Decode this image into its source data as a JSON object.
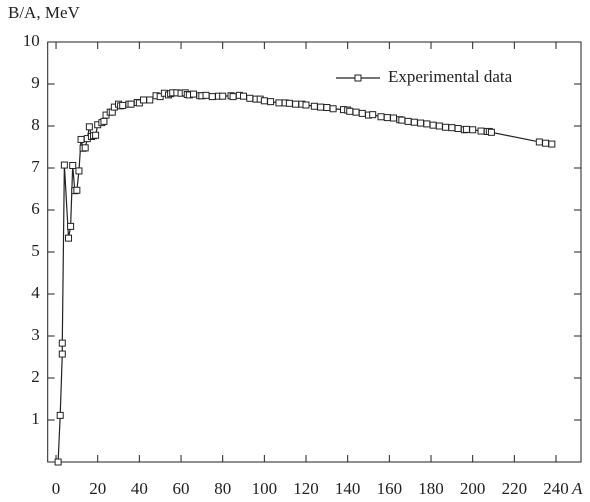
{
  "chart_data": {
    "type": "line",
    "y_label": "B/A, MeV",
    "x_label": "A",
    "x": [
      1,
      2,
      3,
      3,
      4,
      6,
      7,
      8,
      9,
      10,
      11,
      12,
      13,
      14,
      15,
      16,
      17,
      18,
      19,
      20,
      22,
      23,
      24,
      26,
      27,
      28,
      30,
      31,
      32,
      35,
      36,
      39,
      40,
      42,
      45,
      48,
      50,
      52,
      54,
      55,
      56,
      58,
      60,
      62,
      63,
      64,
      66,
      69,
      70,
      72,
      75,
      78,
      80,
      84,
      85,
      88,
      90,
      93,
      96,
      98,
      100,
      103,
      107,
      110,
      112,
      115,
      118,
      120,
      124,
      127,
      130,
      133,
      138,
      140,
      141,
      144,
      147,
      150,
      152,
      156,
      159,
      162,
      165,
      166,
      169,
      172,
      175,
      178,
      181,
      184,
      187,
      190,
      193,
      196,
      197,
      200,
      204,
      207,
      208,
      209,
      232,
      235,
      238
    ],
    "series": [
      {
        "name": "Experimental data",
        "color": "#222222",
        "values": [
          0,
          1.11,
          2.57,
          2.83,
          7.07,
          5.33,
          5.61,
          7.06,
          6.46,
          6.47,
          6.93,
          7.68,
          7.47,
          7.48,
          7.7,
          7.98,
          7.75,
          7.77,
          7.78,
          8.03,
          8.08,
          8.11,
          8.26,
          8.33,
          8.33,
          8.45,
          8.52,
          8.48,
          8.49,
          8.52,
          8.52,
          8.56,
          8.55,
          8.62,
          8.62,
          8.72,
          8.7,
          8.78,
          8.74,
          8.77,
          8.79,
          8.79,
          8.78,
          8.79,
          8.75,
          8.74,
          8.76,
          8.72,
          8.72,
          8.73,
          8.7,
          8.71,
          8.71,
          8.72,
          8.7,
          8.73,
          8.71,
          8.66,
          8.64,
          8.64,
          8.6,
          8.58,
          8.55,
          8.55,
          8.54,
          8.52,
          8.52,
          8.5,
          8.47,
          8.45,
          8.44,
          8.41,
          8.39,
          8.38,
          8.35,
          8.33,
          8.3,
          8.26,
          8.27,
          8.22,
          8.2,
          8.19,
          8.15,
          8.14,
          8.11,
          8.09,
          8.07,
          8.05,
          8.02,
          8,
          7.97,
          7.96,
          7.94,
          7.91,
          7.92,
          7.91,
          7.88,
          7.87,
          7.87,
          7.85,
          7.62,
          7.59,
          7.57
        ]
      }
    ],
    "xlim": [
      -4,
      252
    ],
    "ylim": [
      0,
      10
    ],
    "xticks": [
      0,
      20,
      40,
      60,
      80,
      100,
      120,
      140,
      160,
      180,
      200,
      220,
      240
    ],
    "yticks": [
      1,
      2,
      3,
      4,
      5,
      6,
      7,
      8,
      9,
      10
    ],
    "legend": "upper right",
    "grid": false
  }
}
